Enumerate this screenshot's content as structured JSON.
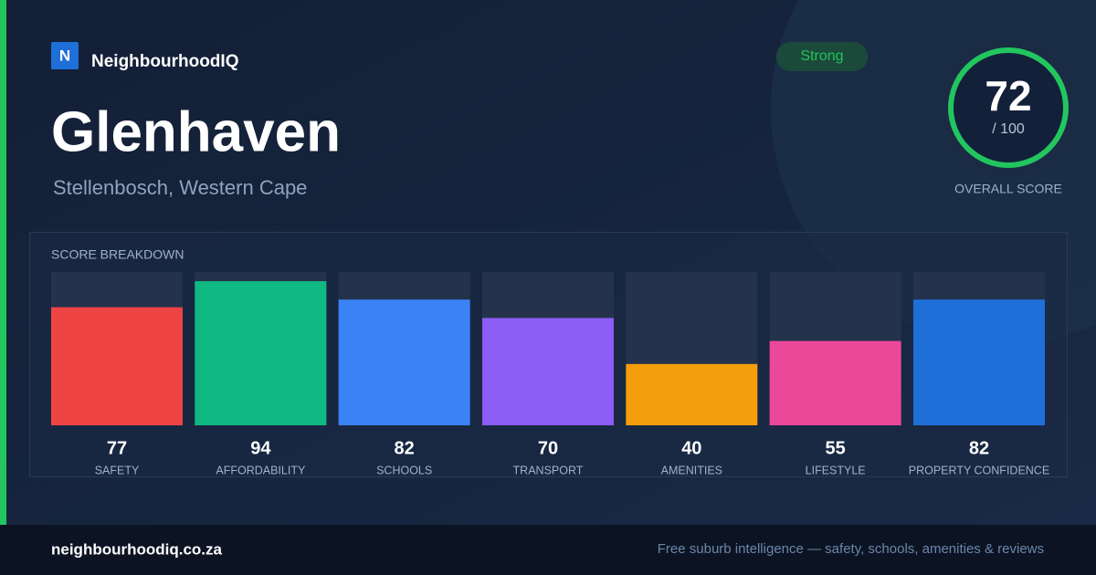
{
  "brand": {
    "logo_letter": "N",
    "name": "NeighbourhoodIQ"
  },
  "header": {
    "title": "Glenhaven",
    "subtitle": "Stellenbosch, Western Cape",
    "badge": "Strong"
  },
  "overall": {
    "score": 72,
    "max_label": "/ 100",
    "label": "OVERALL SCORE"
  },
  "chart_data": {
    "type": "bar",
    "title": "SCORE BREAKDOWN",
    "categories": [
      "SAFETY",
      "AFFORDABILITY",
      "SCHOOLS",
      "TRANSPORT",
      "AMENITIES",
      "LIFESTYLE",
      "PROPERTY CONFIDENCE"
    ],
    "values": [
      77,
      94,
      82,
      70,
      40,
      55,
      82
    ],
    "colors": [
      "#ef4444",
      "#10b981",
      "#3b82f6",
      "#8b5cf6",
      "#f59e0b",
      "#ec4899",
      "#1f6fd9"
    ],
    "ylim": [
      0,
      100
    ]
  },
  "footer": {
    "site": "neighbourhoodiq.co.za",
    "tagline": "Free suburb intelligence — safety, schools, amenities & reviews"
  }
}
